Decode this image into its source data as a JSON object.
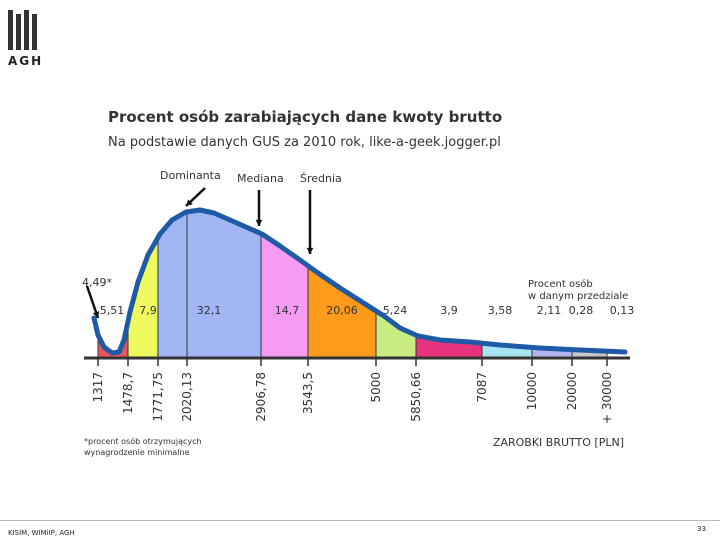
{
  "slide": {
    "logo_text": "AGH",
    "footer_left": "KISIM, WIMiIP, AGH",
    "page_number": "33"
  },
  "colors": {
    "curve": "#1f5aa6",
    "bins": [
      "#e8555a",
      "#eefa5e",
      "#a1b6f5",
      "#a1b6f5",
      "#f59cf2",
      "#ff9a1a",
      "#c8ec82",
      "#e8347e",
      "#a8e4f2",
      "#b3b3f0",
      "#c8c8c8"
    ]
  },
  "chart_data": {
    "type": "area",
    "title": "Procent osób zarabiających dane kwoty brutto",
    "subtitle": "Na podstawie danych GUS za 2010 rok, like-a-geek.jogger.pl",
    "xlabel": "ZAROBKI BRUTTO [PLN]",
    "x_ticks": [
      "1317",
      "1478,7",
      "1771,75",
      "2020,13",
      "2906,78",
      "3543,5",
      "5000",
      "5850,66",
      "7087",
      "10000",
      "20000",
      "+ 30000"
    ],
    "bins": [
      {
        "from": "1317",
        "to": "1478,7",
        "value_label": "5,51"
      },
      {
        "from": "1478,7",
        "to": "1771,75",
        "value_label": "7,9"
      },
      {
        "from": "1771,75",
        "to": "2906,78",
        "value_label": "32,1"
      },
      {
        "from": "2906,78",
        "to": "3543,5",
        "value_label": "14,7"
      },
      {
        "from": "3543,5",
        "to": "5000",
        "value_label": "20,06"
      },
      {
        "from": "5000",
        "to": "5850,66",
        "value_label": "5,24"
      },
      {
        "from": "5850,66",
        "to": "7087",
        "value_label": "3,9"
      },
      {
        "from": "7087",
        "to": "10000",
        "value_label": "3,58"
      },
      {
        "from": "10000",
        "to": "20000",
        "value_label": "2,11"
      },
      {
        "from": "20000",
        "to": "+ 30000",
        "value_label": "0,28"
      },
      {
        "from": "+ 30000",
        "to": "",
        "value_label": "0,13"
      }
    ],
    "first_value_label": "4,49*",
    "annotations": {
      "dominanta": "Dominanta",
      "mediana": "Mediana",
      "srednia": "Średnia",
      "legend_note": [
        "Procent osób",
        "w danym przedziale"
      ],
      "footnote": [
        "*procent osób otrzymujących",
        "wynagrodzenie minimalne"
      ]
    }
  }
}
